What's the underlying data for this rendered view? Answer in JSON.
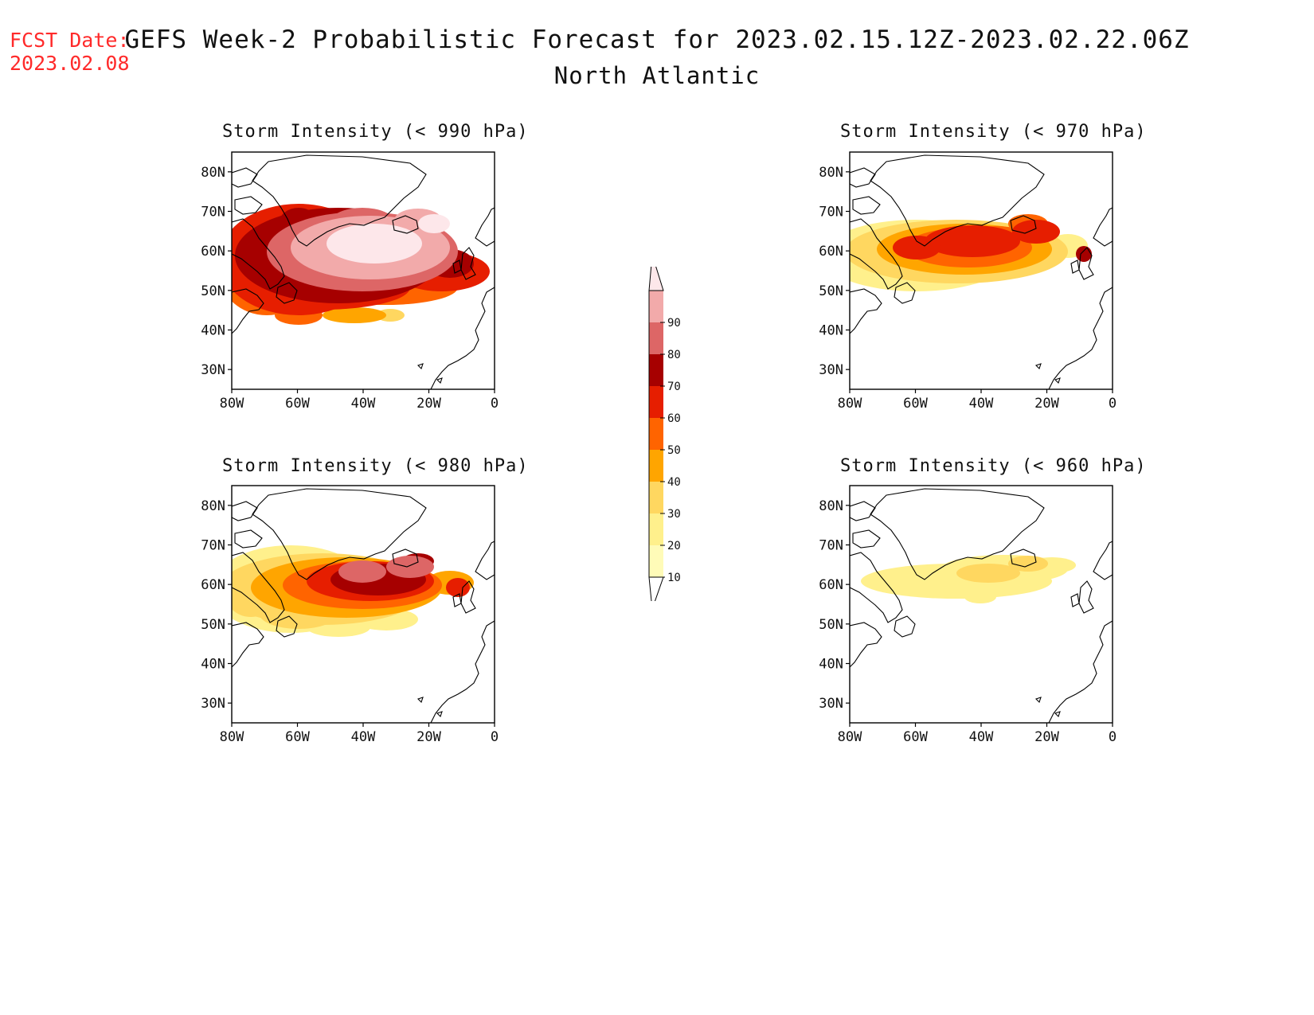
{
  "header": {
    "fcst_label": "FCST Date:",
    "fcst_date": "2023.02.08",
    "title": "GEFS Week-2 Probabilistic Forecast for 2023.02.15.12Z-2023.02.22.06Z",
    "subtitle": "North Atlantic"
  },
  "axes": {
    "lat_ticks": [
      "80N",
      "70N",
      "60N",
      "50N",
      "40N",
      "30N"
    ],
    "lon_ticks": [
      "80W",
      "60W",
      "40W",
      "20W",
      "0"
    ],
    "lat_range": [
      25,
      85
    ],
    "lon_range": [
      -80,
      0
    ]
  },
  "panels": [
    {
      "id": "p990",
      "title": "Storm Intensity (< 990 hPa)",
      "max_probability_pct": 90
    },
    {
      "id": "p970",
      "title": "Storm Intensity (< 970 hPa)",
      "max_probability_pct": 60
    },
    {
      "id": "p980",
      "title": "Storm Intensity (< 980 hPa)",
      "max_probability_pct": 80
    },
    {
      "id": "p960",
      "title": "Storm Intensity (< 960 hPa)",
      "max_probability_pct": 30
    }
  ],
  "colorbar": {
    "levels": [
      "10",
      "20",
      "30",
      "40",
      "50",
      "60",
      "70",
      "80",
      "90"
    ],
    "colors": [
      "#fffbb8",
      "#fff08c",
      "#ffd760",
      "#ffa500",
      "#ff6400",
      "#e61e00",
      "#a60000",
      "#dd6666",
      "#f2aaaa",
      "#fde7ea"
    ]
  }
}
